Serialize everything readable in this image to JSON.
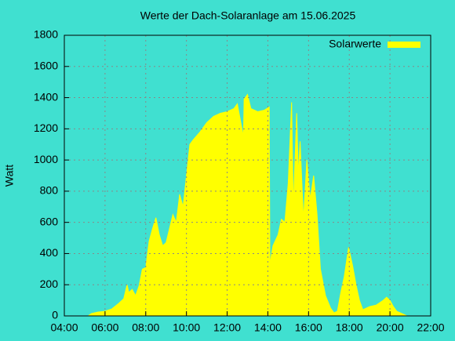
{
  "chart_data": {
    "type": "area",
    "title": "Werte der Dach-Solaranlage am 15.06.2025",
    "y_label": "Watt",
    "color": "#ffff00",
    "background": "#40e0d0",
    "grid": true,
    "legend": "top-right",
    "xlim": [
      "04:00",
      "22:00"
    ],
    "xticks": [
      "04:00",
      "06:00",
      "08:00",
      "10:00",
      "12:00",
      "14:00",
      "16:00",
      "18:00",
      "20:00",
      "22:00"
    ],
    "ylim": [
      0,
      1800
    ],
    "yticks": [
      0,
      200,
      400,
      600,
      800,
      1000,
      1200,
      1400,
      1600,
      1800
    ],
    "series": [
      {
        "name": "Solarwerte",
        "color": "#ffff00",
        "x": [
          "05:10",
          "05:20",
          "05:40",
          "06:00",
          "06:20",
          "06:40",
          "06:55",
          "07:05",
          "07:10",
          "07:20",
          "07:30",
          "07:40",
          "07:50",
          "08:00",
          "08:10",
          "08:20",
          "08:30",
          "08:40",
          "08:50",
          "09:00",
          "09:10",
          "09:20",
          "09:30",
          "09:40",
          "09:50",
          "10:00",
          "10:10",
          "10:20",
          "10:40",
          "11:00",
          "11:20",
          "11:40",
          "12:00",
          "12:20",
          "12:30",
          "12:48",
          "12:50",
          "13:00",
          "13:10",
          "13:30",
          "13:50",
          "14:04",
          "14:06",
          "14:15",
          "14:30",
          "14:40",
          "14:50",
          "15:00",
          "15:10",
          "15:15",
          "15:25",
          "15:30",
          "15:35",
          "15:45",
          "15:55",
          "16:05",
          "16:15",
          "16:25",
          "16:35",
          "16:50",
          "17:05",
          "17:15",
          "17:25",
          "17:35",
          "17:45",
          "17:58",
          "18:10",
          "18:20",
          "18:30",
          "18:40",
          "18:50",
          "19:00",
          "19:20",
          "19:40",
          "19:50",
          "20:00",
          "20:10",
          "20:20",
          "20:40",
          "20:50"
        ],
        "values": [
          0,
          15,
          25,
          30,
          45,
          80,
          110,
          200,
          150,
          170,
          130,
          190,
          300,
          310,
          480,
          560,
          630,
          520,
          450,
          470,
          560,
          650,
          600,
          780,
          700,
          900,
          1100,
          1130,
          1180,
          1240,
          1280,
          1300,
          1310,
          1330,
          1360,
          1150,
          1390,
          1420,
          1330,
          1310,
          1320,
          1340,
          330,
          450,
          520,
          620,
          600,
          850,
          1370,
          700,
          1300,
          900,
          1120,
          620,
          1000,
          750,
          900,
          650,
          300,
          130,
          50,
          20,
          30,
          150,
          250,
          440,
          320,
          200,
          100,
          40,
          50,
          60,
          70,
          100,
          120,
          100,
          60,
          30,
          10,
          0
        ]
      }
    ]
  }
}
